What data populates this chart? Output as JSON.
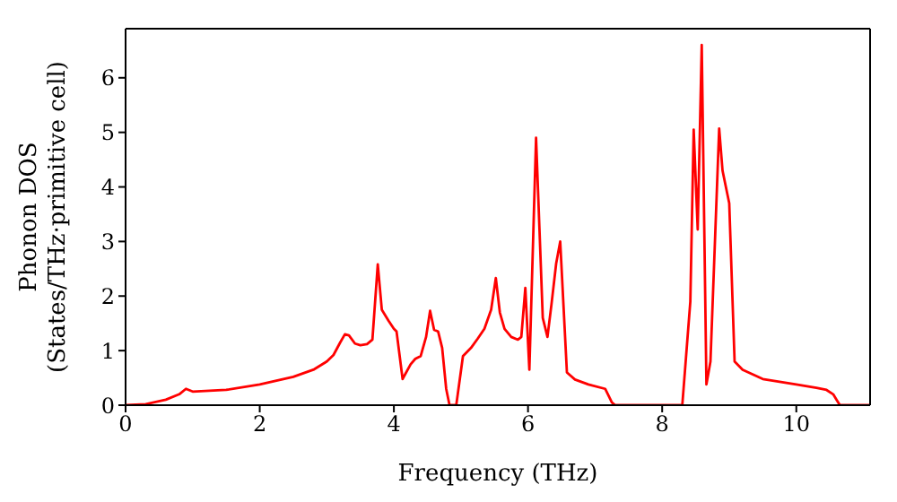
{
  "chart_data": {
    "type": "line",
    "xlabel": "Frequency (THz)",
    "ylabel": "Phonon DOS\n(States/THz·primitive cell)",
    "xlim": [
      0,
      11.1
    ],
    "ylim": [
      0,
      6.9
    ],
    "xticks": [
      0,
      2,
      4,
      6,
      8,
      10
    ],
    "yticks": [
      0,
      1,
      2,
      3,
      4,
      5,
      6
    ],
    "grid": false,
    "marker": "none",
    "line_style": "solid",
    "series": [
      {
        "color": "#ff0000",
        "x": [
          0,
          0.3,
          0.6,
          0.8,
          0.9,
          1.0,
          1.5,
          2.0,
          2.5,
          2.8,
          3.0,
          3.1,
          3.2,
          3.27,
          3.33,
          3.42,
          3.5,
          3.6,
          3.68,
          3.76,
          3.82,
          3.92,
          4.0,
          4.04,
          4.13,
          4.25,
          4.32,
          4.4,
          4.48,
          4.54,
          4.6,
          4.66,
          4.72,
          4.78,
          4.83,
          4.93,
          5.03,
          5.15,
          5.25,
          5.35,
          5.45,
          5.52,
          5.58,
          5.65,
          5.75,
          5.85,
          5.9,
          5.96,
          6.02,
          6.12,
          6.22,
          6.29,
          6.35,
          6.42,
          6.48,
          6.58,
          6.7,
          6.9,
          7.15,
          7.25,
          7.3,
          8.3,
          8.42,
          8.47,
          8.53,
          8.59,
          8.66,
          8.72,
          8.85,
          8.9,
          8.95,
          9.0,
          9.08,
          9.2,
          9.5,
          10.0,
          10.3,
          10.45,
          10.55,
          10.6,
          10.65,
          11.1
        ],
        "values": [
          0,
          0.02,
          0.1,
          0.2,
          0.3,
          0.25,
          0.28,
          0.38,
          0.52,
          0.65,
          0.8,
          0.92,
          1.15,
          1.3,
          1.28,
          1.13,
          1.1,
          1.12,
          1.2,
          2.58,
          1.75,
          1.55,
          1.4,
          1.35,
          0.48,
          0.75,
          0.85,
          0.9,
          1.25,
          1.73,
          1.38,
          1.35,
          1.05,
          0.3,
          0,
          0,
          0.9,
          1.05,
          1.22,
          1.4,
          1.75,
          2.33,
          1.7,
          1.4,
          1.25,
          1.2,
          1.25,
          2.15,
          0.65,
          4.9,
          1.6,
          1.25,
          1.85,
          2.6,
          3.0,
          0.6,
          0.47,
          0.38,
          0.3,
          0.05,
          0,
          0,
          1.9,
          5.05,
          3.22,
          6.6,
          0.38,
          0.8,
          5.07,
          4.3,
          4.0,
          3.7,
          0.8,
          0.65,
          0.48,
          0.38,
          0.32,
          0.28,
          0.2,
          0.1,
          0,
          0
        ]
      }
    ]
  }
}
